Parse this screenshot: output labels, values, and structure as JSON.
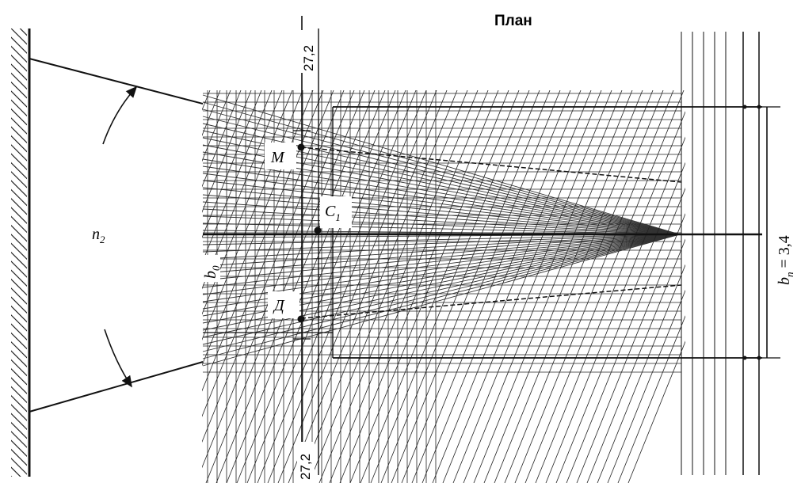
{
  "title": "План",
  "labels": {
    "angle": "n",
    "angle_sub": "2",
    "point_m": "М",
    "point_c": "C",
    "point_c_sub": "1",
    "point_d": "Д",
    "width_b0": "b",
    "width_b0_sub": "0",
    "width_bn_lhs": "b",
    "width_bn_sub": "п",
    "width_bn_rhs": " = 3,4"
  },
  "dimensions": {
    "top": "27,2",
    "bottom": "27,2"
  }
}
